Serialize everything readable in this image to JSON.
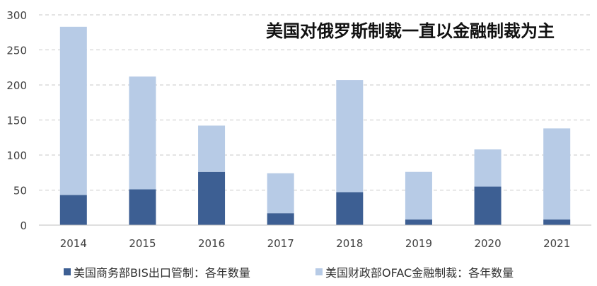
{
  "chart_data": {
    "type": "bar",
    "stacked": true,
    "title": "美国对俄罗斯制裁一直以金融制裁为主",
    "categories": [
      "2014",
      "2015",
      "2016",
      "2017",
      "2018",
      "2019",
      "2020",
      "2021"
    ],
    "series": [
      {
        "name": "美国商务部BIS出口管制：各年数量",
        "color": "#3d5f93",
        "values": [
          43,
          51,
          76,
          17,
          47,
          8,
          55,
          8
        ]
      },
      {
        "name": "美国财政部OFAC金融制裁：各年数量",
        "color": "#b7cbe6",
        "values": [
          240,
          161,
          66,
          57,
          160,
          68,
          53,
          130
        ]
      }
    ],
    "ylim": [
      0,
      300
    ],
    "yticks": [
      "0",
      "50",
      "100",
      "150",
      "200",
      "250",
      "300"
    ],
    "grid": true,
    "legend_position": "bottom"
  }
}
